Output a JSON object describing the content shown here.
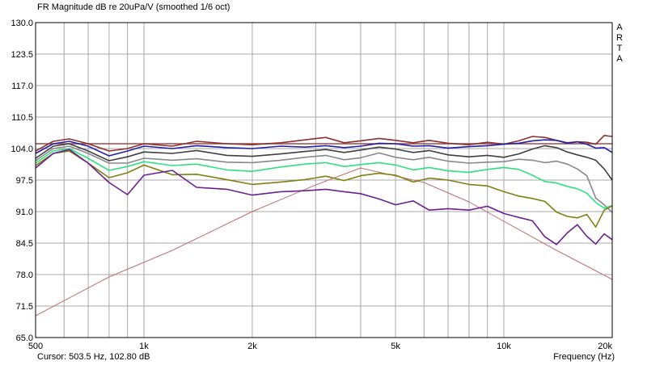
{
  "app": {
    "title": "FR Magnitude dB re 20uPa/V (smoothed 1/6 oct)",
    "brand_letters": [
      "A",
      "R",
      "T",
      "A"
    ],
    "cursor_readout": "Cursor: 503.5 Hz, 102.80 dB",
    "x_unit": "Frequency (Hz)"
  },
  "chart_data": {
    "type": "line",
    "title": "FR Magnitude dB re 20uPa/V (smoothed 1/6 oct)",
    "xlabel": "Frequency (Hz)",
    "ylabel": "",
    "xscale": "log",
    "xlim": [
      500,
      20000
    ],
    "ylim": [
      65,
      130
    ],
    "grid": true,
    "x_ticks": [
      {
        "value": 500,
        "label": "500"
      },
      {
        "value": 1000,
        "label": "1k"
      },
      {
        "value": 2000,
        "label": "2k"
      },
      {
        "value": 5000,
        "label": "5k"
      },
      {
        "value": 10000,
        "label": "10k"
      },
      {
        "value": 20000,
        "label": "20k"
      }
    ],
    "y_ticks": [
      {
        "value": 130,
        "label": "130.0"
      },
      {
        "value": 123.5,
        "label": "123.5"
      },
      {
        "value": 117,
        "label": "117.0"
      },
      {
        "value": 110.5,
        "label": "110.5"
      },
      {
        "value": 104,
        "label": "104.0"
      },
      {
        "value": 97.5,
        "label": "97.5"
      },
      {
        "value": 91,
        "label": "91.0"
      },
      {
        "value": 84.5,
        "label": "84.5"
      },
      {
        "value": 78,
        "label": "78.0"
      },
      {
        "value": 71.5,
        "label": "71.5"
      },
      {
        "value": 65,
        "label": "65.0"
      }
    ],
    "series": [
      {
        "color": "#a04848",
        "x": [
          500,
          20000
        ],
        "y": [
          105,
          105
        ]
      },
      {
        "color": "#c07070",
        "x": [
          500,
          800,
          1200,
          2000,
          3000,
          4000,
          6000,
          8000,
          10000,
          14000,
          20000
        ],
        "y": [
          69.5,
          77.5,
          83,
          91,
          96.5,
          100,
          97,
          93,
          89,
          83,
          77
        ]
      },
      {
        "color": "#8b3030",
        "x": [
          500,
          560,
          620,
          700,
          800,
          900,
          1000,
          1200,
          1400,
          1700,
          2000,
          2400,
          2800,
          3200,
          3600,
          4000,
          4500,
          5000,
          5600,
          6200,
          7000,
          8000,
          9000,
          10000,
          11000,
          12000,
          13000,
          14000,
          15000,
          16000,
          17000,
          18000,
          19000,
          20000
        ],
        "y": [
          103.5,
          105.5,
          106,
          105,
          103.5,
          104,
          105,
          104.5,
          105.5,
          105,
          104.8,
          105.2,
          105.8,
          106.3,
          105.2,
          105.6,
          106.1,
          105.7,
          105.2,
          105.7,
          105.1,
          104.8,
          105.3,
          104.9,
          105.6,
          106.5,
          106.3,
          105.7,
          105.2,
          105.4,
          105.3,
          104.9,
          106.7,
          106.5
        ]
      },
      {
        "color": "#2020a8",
        "x": [
          500,
          560,
          620,
          700,
          800,
          900,
          1000,
          1200,
          1400,
          1700,
          2000,
          2400,
          2800,
          3200,
          3600,
          4000,
          4500,
          5000,
          5600,
          6200,
          7000,
          8000,
          9000,
          10000,
          11000,
          12000,
          13000,
          14000,
          15000,
          16000,
          17000,
          18000,
          19000,
          20000
        ],
        "y": [
          103,
          105,
          105.5,
          104.5,
          102.5,
          103.5,
          104.5,
          104,
          104.6,
          104.2,
          104,
          104.5,
          104.3,
          104.6,
          104.2,
          104.5,
          105.1,
          105,
          104.5,
          104.6,
          104.1,
          104.4,
          104.6,
          104.9,
          105.1,
          105.6,
          105.8,
          105.7,
          105.1,
          105.4,
          104.9,
          104.1,
          104.2,
          103.2
        ]
      },
      {
        "color": "#404040",
        "x": [
          500,
          560,
          620,
          700,
          800,
          900,
          1000,
          1200,
          1400,
          1700,
          2000,
          2400,
          2800,
          3200,
          3600,
          4000,
          4500,
          5000,
          5600,
          6200,
          7000,
          8000,
          9000,
          10000,
          11000,
          12000,
          13000,
          14000,
          15000,
          16000,
          17000,
          18000,
          19000,
          20000
        ],
        "y": [
          102,
          104.5,
          105,
          103.5,
          101.5,
          102.3,
          103.3,
          103,
          103.6,
          102.6,
          102.4,
          102.9,
          103.4,
          103.8,
          103.2,
          103.7,
          104.3,
          103.9,
          103.2,
          103.6,
          102.7,
          102.3,
          102.6,
          102.2,
          102.9,
          103.9,
          104.6,
          104.2,
          103.3,
          102.7,
          102.2,
          101.6,
          99.8,
          97.5
        ]
      },
      {
        "color": "#888888",
        "x": [
          500,
          560,
          620,
          700,
          800,
          900,
          1000,
          1200,
          1400,
          1700,
          2000,
          2400,
          2800,
          3200,
          3600,
          4000,
          4500,
          5000,
          5600,
          6200,
          7000,
          8000,
          9000,
          10000,
          11000,
          12000,
          13000,
          14000,
          15000,
          16000,
          17000,
          18000,
          19000,
          20000
        ],
        "y": [
          101.5,
          104,
          104.5,
          103,
          101,
          101,
          102,
          101.6,
          101.9,
          101.2,
          101.1,
          101.6,
          102.2,
          102.6,
          101.7,
          102.1,
          103.1,
          102.2,
          101.7,
          102.2,
          101.4,
          101,
          101.2,
          101.3,
          101.8,
          101.6,
          101.1,
          101.4,
          100.8,
          99.8,
          98.4,
          93.8,
          92.4,
          90.8
        ]
      },
      {
        "color": "#30e080",
        "x": [
          500,
          560,
          620,
          700,
          800,
          900,
          1000,
          1200,
          1400,
          1700,
          2000,
          2400,
          2800,
          3200,
          3600,
          4000,
          4500,
          5000,
          5600,
          6200,
          7000,
          8000,
          9000,
          10000,
          11000,
          12000,
          13000,
          14000,
          15000,
          16000,
          17000,
          18000,
          19000,
          20000
        ],
        "y": [
          101,
          103.5,
          104,
          102,
          99.5,
          100.3,
          101.3,
          100.5,
          100.8,
          99.6,
          99.3,
          100.2,
          100.8,
          101.1,
          100.3,
          100.7,
          101.1,
          100.6,
          99.6,
          100.1,
          99.4,
          99.1,
          99.7,
          100.1,
          99.7,
          98.5,
          97.2,
          96.9,
          96.2,
          95.7,
          94.8,
          92.9,
          91.7,
          92.2
        ]
      },
      {
        "color": "#808010",
        "x": [
          500,
          560,
          620,
          700,
          800,
          900,
          1000,
          1200,
          1400,
          1700,
          2000,
          2400,
          2800,
          3200,
          3600,
          4000,
          4500,
          5000,
          5600,
          6200,
          7000,
          8000,
          9000,
          10000,
          11000,
          12000,
          13000,
          14000,
          15000,
          16000,
          17000,
          18000,
          19000,
          20000
        ],
        "y": [
          100.5,
          103,
          103.5,
          101,
          98,
          99,
          100.6,
          98.6,
          98.7,
          97.6,
          96.6,
          97.1,
          97.6,
          98.3,
          97.4,
          98.4,
          98.9,
          98.5,
          97.1,
          97.9,
          97.5,
          96.6,
          96.3,
          95.1,
          94.2,
          93.7,
          93.1,
          90.9,
          90,
          89.7,
          90.4,
          87.8,
          91.3,
          92.2
        ]
      },
      {
        "color": "#6a2090",
        "x": [
          500,
          560,
          620,
          700,
          800,
          900,
          1000,
          1200,
          1400,
          1700,
          2000,
          2400,
          2800,
          3200,
          3600,
          4000,
          4500,
          5000,
          5600,
          6200,
          7000,
          8000,
          9000,
          10000,
          11000,
          12000,
          13000,
          14000,
          15000,
          16000,
          17000,
          18000,
          19000,
          20000
        ],
        "y": [
          100,
          103,
          103.8,
          101,
          97,
          94.5,
          98.5,
          99.5,
          96,
          95.6,
          94.4,
          95.1,
          95.3,
          95.6,
          95.1,
          94.7,
          93.6,
          92.4,
          93.2,
          91.3,
          91.6,
          91.3,
          92.1,
          90.6,
          89.8,
          89.1,
          85.8,
          84.2,
          86.6,
          88.3,
          85.9,
          84.3,
          86.4,
          85.2
        ]
      }
    ]
  }
}
